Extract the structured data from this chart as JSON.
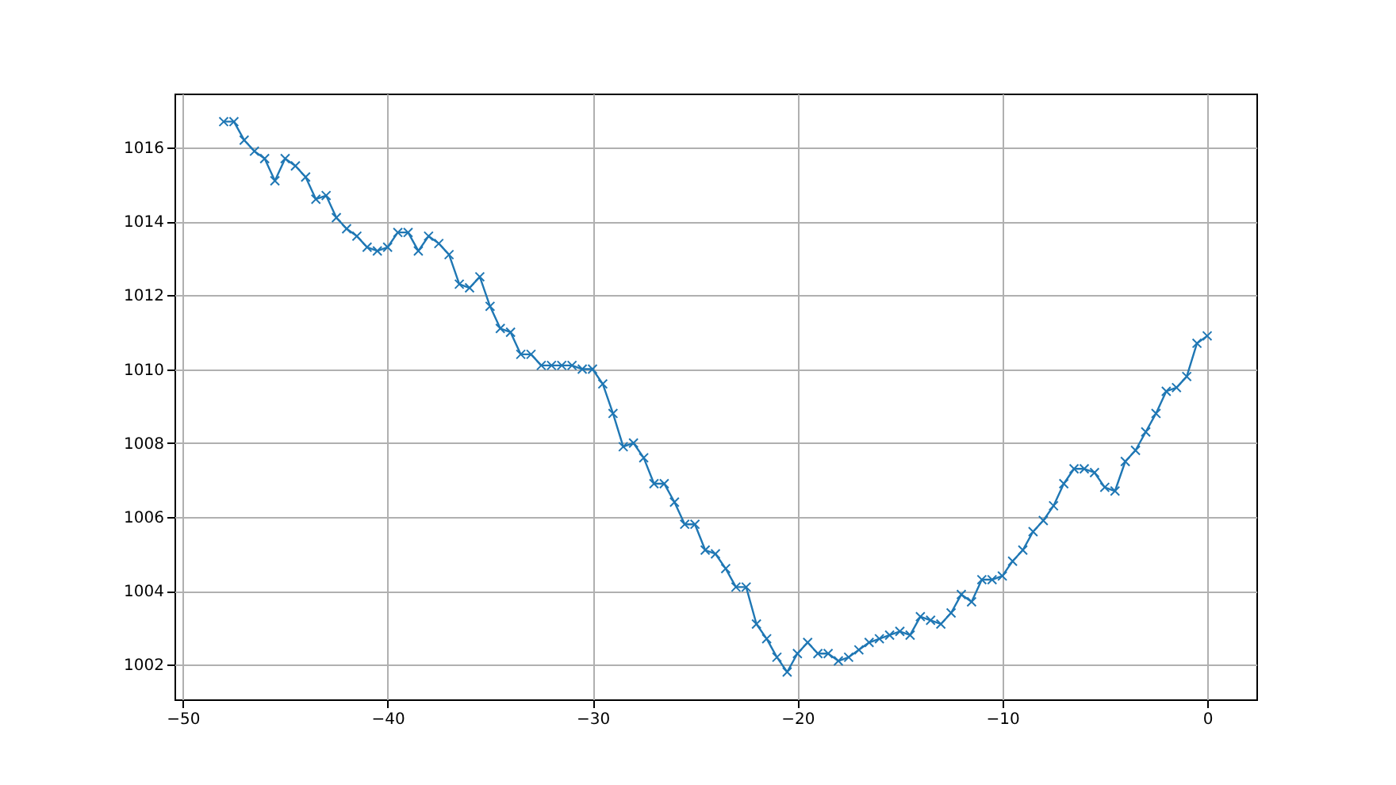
{
  "chart_data": {
    "type": "line",
    "marker": "cross",
    "grid": true,
    "xlim": [
      -50.4,
      2.4
    ],
    "ylim": [
      1001.06,
      1017.46
    ],
    "xticks": [
      -50,
      -40,
      -30,
      -20,
      -10,
      0
    ],
    "yticks": [
      1002,
      1004,
      1006,
      1008,
      1010,
      1012,
      1014,
      1016
    ],
    "x": [
      -48,
      -47.5,
      -47,
      -46.5,
      -46,
      -45.5,
      -45,
      -44.5,
      -44,
      -43.5,
      -43,
      -42.5,
      -42,
      -41.5,
      -41,
      -40.5,
      -40,
      -39.5,
      -39,
      -38.5,
      -38,
      -37.5,
      -37,
      -36.5,
      -36,
      -35.5,
      -35,
      -34.5,
      -34,
      -33.5,
      -33,
      -32.5,
      -32,
      -31.5,
      -31,
      -30.5,
      -30,
      -29.5,
      -29,
      -28.5,
      -28,
      -27.5,
      -27,
      -26.5,
      -26,
      -25.5,
      -25,
      -24.5,
      -24,
      -23.5,
      -23,
      -22.5,
      -22,
      -21.5,
      -21,
      -20.5,
      -20,
      -19.5,
      -19,
      -18.5,
      -18,
      -17.5,
      -17,
      -16.5,
      -16,
      -15.5,
      -15,
      -14.5,
      -14,
      -13.5,
      -13,
      -12.5,
      -12,
      -11.5,
      -11,
      -10.5,
      -10,
      -9.5,
      -9,
      -8.5,
      -8,
      -7.5,
      -7,
      -6.5,
      -6,
      -5.5,
      -5,
      -4.5,
      -4,
      -3.5,
      -3,
      -2.5,
      -2,
      -1.5,
      -1,
      -0.5,
      0
    ],
    "series": [
      {
        "color": "#1f77b4",
        "values": [
          1016.7,
          1016.7,
          1016.2,
          1015.9,
          1015.7,
          1015.1,
          1015.7,
          1015.5,
          1015.2,
          1014.6,
          1014.7,
          1014.1,
          1013.8,
          1013.6,
          1013.3,
          1013.2,
          1013.3,
          1013.7,
          1013.7,
          1013.2,
          1013.6,
          1013.4,
          1013.1,
          1012.3,
          1012.2,
          1012.5,
          1011.7,
          1011.1,
          1011.0,
          1010.4,
          1010.4,
          1010.1,
          1010.1,
          1010.1,
          1010.1,
          1010.0,
          1010.0,
          1009.6,
          1008.8,
          1007.9,
          1008.0,
          1007.6,
          1006.9,
          1006.9,
          1006.4,
          1005.8,
          1005.8,
          1005.1,
          1005.0,
          1004.6,
          1004.1,
          1004.1,
          1003.1,
          1002.7,
          1002.2,
          1001.8,
          1002.3,
          1002.6,
          1002.3,
          1002.3,
          1002.1,
          1002.2,
          1002.4,
          1002.6,
          1002.7,
          1002.8,
          1002.9,
          1002.8,
          1003.3,
          1003.2,
          1003.1,
          1003.4,
          1003.9,
          1003.7,
          1004.3,
          1004.3,
          1004.4,
          1004.8,
          1005.1,
          1005.6,
          1005.9,
          1006.3,
          1006.9,
          1007.3,
          1007.3,
          1007.2,
          1006.8,
          1006.7,
          1007.5,
          1007.8,
          1008.3,
          1008.8,
          1009.4,
          1009.5,
          1009.8,
          1010.7,
          1010.9
        ]
      }
    ]
  }
}
